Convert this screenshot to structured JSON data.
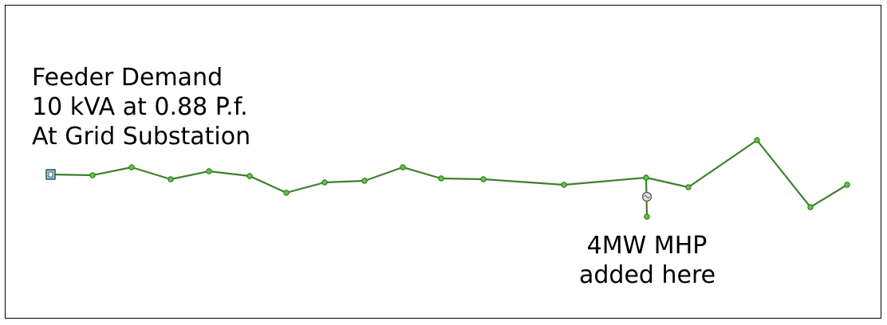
{
  "annotations": {
    "feeder_demand": [
      "Feeder Demand",
      "10 kVA at 0.88 P.f.",
      "At Grid Substation"
    ],
    "mhp_note": [
      "4MW MHP",
      "added here"
    ]
  },
  "colors": {
    "line": "#3f7f2f",
    "node_fill": "#5cc83a",
    "node_stroke": "#2e6b1f",
    "source_fill": "#9ec9d6",
    "source_stroke": "#1f4e5c",
    "generator_stroke": "#555555",
    "frame": "#000000",
    "text": "#000000"
  },
  "icons": {
    "source": "grid-substation-icon",
    "node": "bus-node-icon",
    "generator": "generator-icon"
  }
}
